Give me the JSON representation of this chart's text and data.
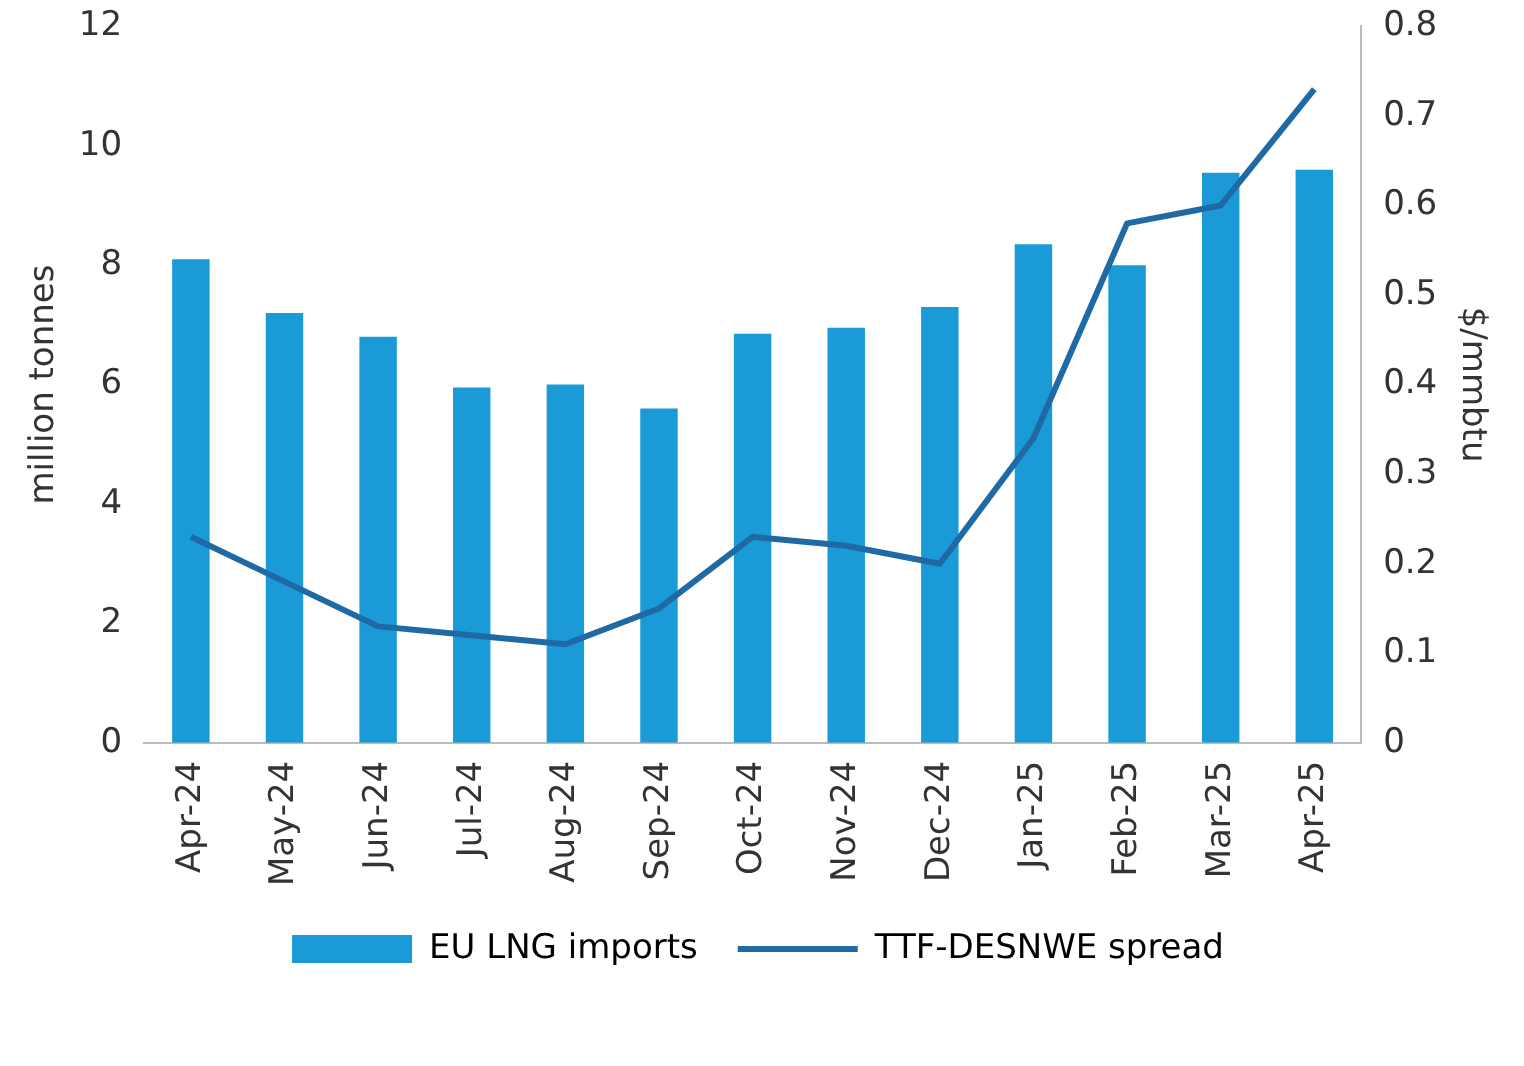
{
  "chart_data": {
    "type": "bar",
    "categories": [
      "Apr-24",
      "May-24",
      "Jun-24",
      "Jul-24",
      "Aug-24",
      "Sep-24",
      "Oct-24",
      "Nov-24",
      "Dec-24",
      "Jan-25",
      "Feb-25",
      "Mar-25",
      "Apr-25"
    ],
    "series": [
      {
        "name": "EU LNG imports",
        "color": "#1a9bd7",
        "values": [
          8.1,
          7.2,
          6.8,
          5.95,
          6.0,
          5.6,
          6.85,
          6.95,
          7.3,
          8.35,
          8.0,
          9.55,
          9.6
        ]
      },
      {
        "name": "TTF-DESNWE spread",
        "type": "line",
        "axis": "y2",
        "color": "#1f6aa5",
        "values": [
          0.23,
          0.18,
          0.13,
          0.12,
          0.11,
          0.15,
          0.23,
          0.22,
          0.2,
          0.34,
          0.58,
          0.6,
          0.73
        ]
      }
    ],
    "ylabel": "million tonnes",
    "y2label": "$/mmbtu",
    "ylim": [
      0,
      12
    ],
    "yticks": [
      0,
      2,
      4,
      6,
      8,
      10,
      12
    ],
    "y2lim": [
      0,
      0.8
    ],
    "y2ticks": [
      0,
      0.1,
      0.2,
      0.3,
      0.4,
      0.5,
      0.6,
      0.7,
      0.8
    ],
    "grid": false,
    "legend": "bottom",
    "marker": "none"
  }
}
